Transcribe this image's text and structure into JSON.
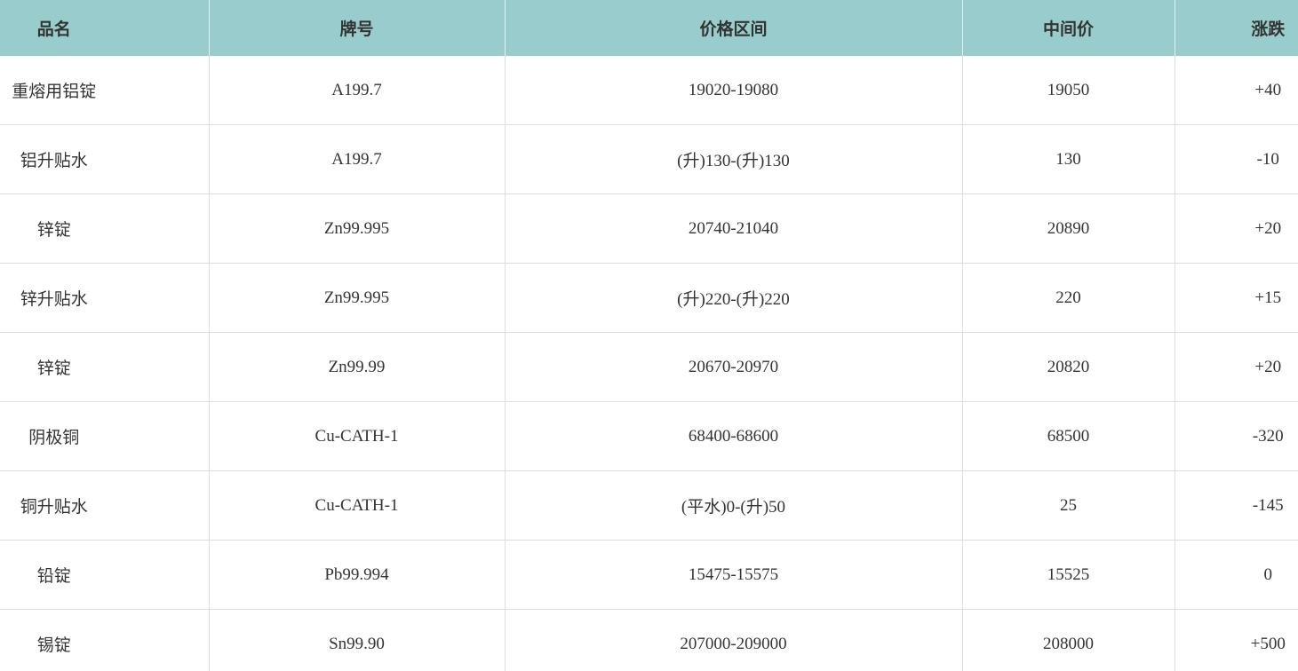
{
  "table": {
    "columns": [
      "品名",
      "牌号",
      "价格区间",
      "中间价",
      "涨跌"
    ],
    "rows": [
      [
        "重熔用铝锭",
        "A199.7",
        "19020-19080",
        "19050",
        "+40"
      ],
      [
        "铝升贴水",
        "A199.7",
        "(升)130-(升)130",
        "130",
        "-10"
      ],
      [
        "锌锭",
        "Zn99.995",
        "20740-21040",
        "20890",
        "+20"
      ],
      [
        "锌升贴水",
        "Zn99.995",
        "(升)220-(升)220",
        "220",
        "+15"
      ],
      [
        "锌锭",
        "Zn99.99",
        "20670-20970",
        "20820",
        "+20"
      ],
      [
        "阴极铜",
        "Cu-CATH-1",
        "68400-68600",
        "68500",
        "-320"
      ],
      [
        "铜升贴水",
        "Cu-CATH-1",
        "(平水)0-(升)50",
        "25",
        "-145"
      ],
      [
        "铅锭",
        "Pb99.994",
        "15475-15575",
        "15525",
        "0"
      ],
      [
        "锡锭",
        "Sn99.90",
        "207000-209000",
        "208000",
        "+500"
      ]
    ]
  }
}
